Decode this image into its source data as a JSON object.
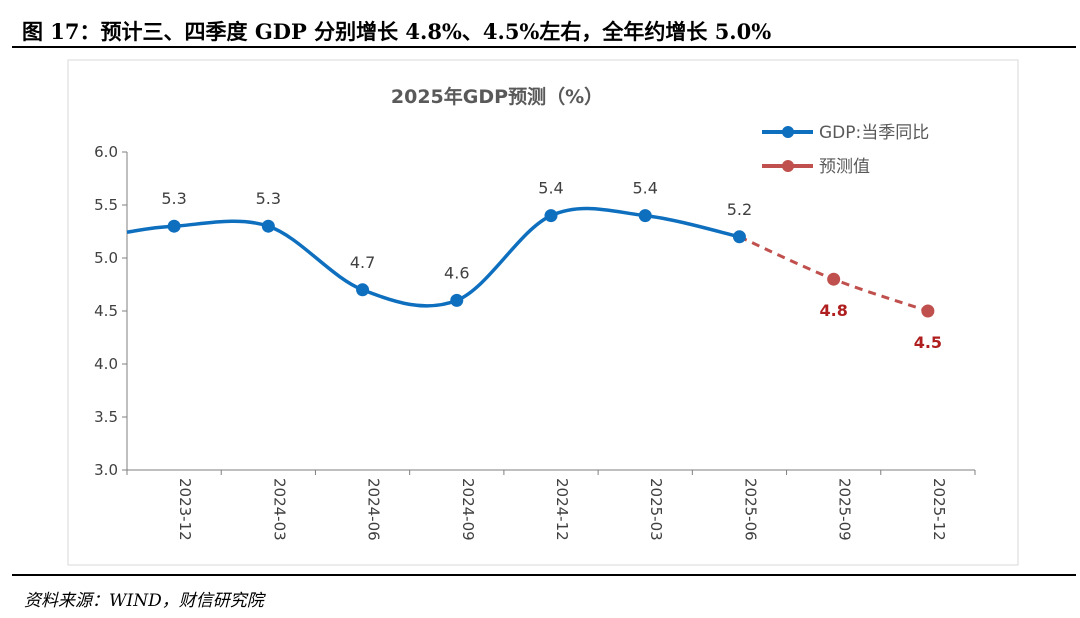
{
  "figure_title": "图 17：预计三、四季度 GDP 分别增长 4.8%、4.5%左右，全年约增长 5.0%",
  "source": "资料来源：WIND，财信研究院",
  "colors": {
    "actual": "#0f6fbf",
    "forecast": "#c0504d",
    "forecast_label": "#b01f1f",
    "axis": "#7f7f7f",
    "text": "#404040"
  },
  "chart_data": {
    "type": "line",
    "title": "2025年GDP预测（%）",
    "categories": [
      "2023-12",
      "2024-03",
      "2024-06",
      "2024-09",
      "2024-12",
      "2025-03",
      "2025-06",
      "2025-09",
      "2025-12"
    ],
    "ylim": [
      3.0,
      6.0
    ],
    "yticks": [
      "3.0",
      "3.5",
      "4.0",
      "4.5",
      "5.0",
      "5.5",
      "6.0"
    ],
    "grid": false,
    "legend_position": "top-right",
    "series": [
      {
        "name": "GDP:当季同比",
        "style": "solid",
        "values": [
          5.3,
          5.3,
          4.7,
          4.6,
          5.4,
          5.4,
          5.2,
          null,
          null
        ],
        "labels": [
          "5.3",
          "5.3",
          "4.7",
          "4.6",
          "5.4",
          "5.4",
          "5.2",
          "",
          ""
        ]
      },
      {
        "name": "预测值",
        "style": "dashed",
        "values": [
          null,
          null,
          null,
          null,
          null,
          null,
          5.2,
          4.8,
          4.5
        ],
        "labels": [
          "",
          "",
          "",
          "",
          "",
          "",
          "",
          "4.8",
          "4.5"
        ]
      }
    ]
  }
}
